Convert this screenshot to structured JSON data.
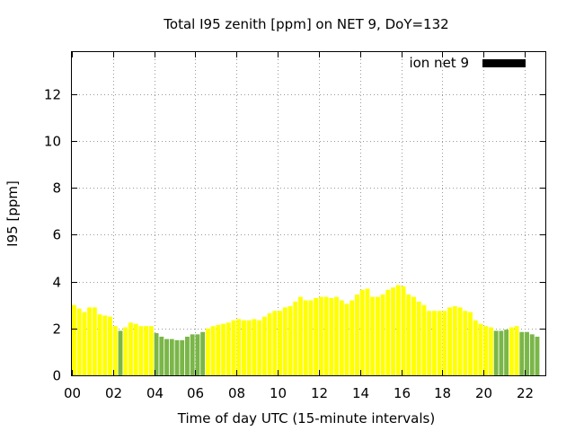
{
  "chart_data": {
    "type": "bar",
    "title": "Total I95 zenith [ppm] on NET 9, DoY=132",
    "xlabel": "Time of day UTC (15-minute intervals)",
    "ylabel": "I95 [ppm]",
    "xlim": [
      0,
      23
    ],
    "ylim": [
      0,
      13.8
    ],
    "grid": true,
    "legend": {
      "position": "top-right",
      "entries": [
        {
          "label": "ion net 9",
          "color": "#000000"
        }
      ]
    },
    "x_ticks": [
      {
        "value": 0,
        "label": "00"
      },
      {
        "value": 2,
        "label": "02"
      },
      {
        "value": 4,
        "label": "04"
      },
      {
        "value": 6,
        "label": "06"
      },
      {
        "value": 8,
        "label": "08"
      },
      {
        "value": 10,
        "label": "10"
      },
      {
        "value": 12,
        "label": "12"
      },
      {
        "value": 14,
        "label": "14"
      },
      {
        "value": 16,
        "label": "16"
      },
      {
        "value": 18,
        "label": "18"
      },
      {
        "value": 20,
        "label": "20"
      },
      {
        "value": 22,
        "label": "22"
      }
    ],
    "y_ticks": [
      {
        "value": 0,
        "label": "0"
      },
      {
        "value": 2,
        "label": "2"
      },
      {
        "value": 4,
        "label": "4"
      },
      {
        "value": 6,
        "label": "6"
      },
      {
        "value": 8,
        "label": "8"
      },
      {
        "value": 10,
        "label": "10"
      },
      {
        "value": 12,
        "label": "12"
      }
    ],
    "colors": {
      "yellow": "#ffff00",
      "green": "#7ab648"
    },
    "bar_interval_hours": 0.25,
    "bars": [
      {
        "x": 0.0,
        "y": 3.0,
        "c": "yellow"
      },
      {
        "x": 0.25,
        "y": 2.85,
        "c": "yellow"
      },
      {
        "x": 0.5,
        "y": 2.7,
        "c": "yellow"
      },
      {
        "x": 0.75,
        "y": 2.9,
        "c": "yellow"
      },
      {
        "x": 1.0,
        "y": 2.9,
        "c": "yellow"
      },
      {
        "x": 1.25,
        "y": 2.6,
        "c": "yellow"
      },
      {
        "x": 1.5,
        "y": 2.55,
        "c": "yellow"
      },
      {
        "x": 1.75,
        "y": 2.5,
        "c": "yellow"
      },
      {
        "x": 2.0,
        "y": 2.1,
        "c": "yellow"
      },
      {
        "x": 2.25,
        "y": 1.9,
        "c": "green"
      },
      {
        "x": 2.5,
        "y": 2.05,
        "c": "yellow"
      },
      {
        "x": 2.75,
        "y": 2.25,
        "c": "yellow"
      },
      {
        "x": 3.0,
        "y": 2.2,
        "c": "yellow"
      },
      {
        "x": 3.25,
        "y": 2.1,
        "c": "yellow"
      },
      {
        "x": 3.5,
        "y": 2.1,
        "c": "yellow"
      },
      {
        "x": 3.75,
        "y": 2.1,
        "c": "yellow"
      },
      {
        "x": 4.0,
        "y": 1.8,
        "c": "green"
      },
      {
        "x": 4.25,
        "y": 1.65,
        "c": "green"
      },
      {
        "x": 4.5,
        "y": 1.55,
        "c": "green"
      },
      {
        "x": 4.75,
        "y": 1.55,
        "c": "green"
      },
      {
        "x": 5.0,
        "y": 1.5,
        "c": "green"
      },
      {
        "x": 5.25,
        "y": 1.5,
        "c": "green"
      },
      {
        "x": 5.5,
        "y": 1.65,
        "c": "green"
      },
      {
        "x": 5.75,
        "y": 1.75,
        "c": "green"
      },
      {
        "x": 6.0,
        "y": 1.75,
        "c": "green"
      },
      {
        "x": 6.25,
        "y": 1.85,
        "c": "green"
      },
      {
        "x": 6.5,
        "y": 2.0,
        "c": "yellow"
      },
      {
        "x": 6.75,
        "y": 2.1,
        "c": "yellow"
      },
      {
        "x": 7.0,
        "y": 2.15,
        "c": "yellow"
      },
      {
        "x": 7.25,
        "y": 2.2,
        "c": "yellow"
      },
      {
        "x": 7.5,
        "y": 2.25,
        "c": "yellow"
      },
      {
        "x": 7.75,
        "y": 2.35,
        "c": "yellow"
      },
      {
        "x": 8.0,
        "y": 2.4,
        "c": "yellow"
      },
      {
        "x": 8.25,
        "y": 2.35,
        "c": "yellow"
      },
      {
        "x": 8.5,
        "y": 2.35,
        "c": "yellow"
      },
      {
        "x": 8.75,
        "y": 2.4,
        "c": "yellow"
      },
      {
        "x": 9.0,
        "y": 2.35,
        "c": "yellow"
      },
      {
        "x": 9.25,
        "y": 2.5,
        "c": "yellow"
      },
      {
        "x": 9.5,
        "y": 2.65,
        "c": "yellow"
      },
      {
        "x": 9.75,
        "y": 2.75,
        "c": "yellow"
      },
      {
        "x": 10.0,
        "y": 2.75,
        "c": "yellow"
      },
      {
        "x": 10.25,
        "y": 2.9,
        "c": "yellow"
      },
      {
        "x": 10.5,
        "y": 2.95,
        "c": "yellow"
      },
      {
        "x": 10.75,
        "y": 3.15,
        "c": "yellow"
      },
      {
        "x": 11.0,
        "y": 3.35,
        "c": "yellow"
      },
      {
        "x": 11.25,
        "y": 3.2,
        "c": "yellow"
      },
      {
        "x": 11.5,
        "y": 3.2,
        "c": "yellow"
      },
      {
        "x": 11.75,
        "y": 3.3,
        "c": "yellow"
      },
      {
        "x": 12.0,
        "y": 3.35,
        "c": "yellow"
      },
      {
        "x": 12.25,
        "y": 3.35,
        "c": "yellow"
      },
      {
        "x": 12.5,
        "y": 3.3,
        "c": "yellow"
      },
      {
        "x": 12.75,
        "y": 3.35,
        "c": "yellow"
      },
      {
        "x": 13.0,
        "y": 3.2,
        "c": "yellow"
      },
      {
        "x": 13.25,
        "y": 3.05,
        "c": "yellow"
      },
      {
        "x": 13.5,
        "y": 3.2,
        "c": "yellow"
      },
      {
        "x": 13.75,
        "y": 3.45,
        "c": "yellow"
      },
      {
        "x": 14.0,
        "y": 3.65,
        "c": "yellow"
      },
      {
        "x": 14.25,
        "y": 3.7,
        "c": "yellow"
      },
      {
        "x": 14.5,
        "y": 3.35,
        "c": "yellow"
      },
      {
        "x": 14.75,
        "y": 3.35,
        "c": "yellow"
      },
      {
        "x": 15.0,
        "y": 3.45,
        "c": "yellow"
      },
      {
        "x": 15.25,
        "y": 3.65,
        "c": "yellow"
      },
      {
        "x": 15.5,
        "y": 3.75,
        "c": "yellow"
      },
      {
        "x": 15.75,
        "y": 3.85,
        "c": "yellow"
      },
      {
        "x": 16.0,
        "y": 3.8,
        "c": "yellow"
      },
      {
        "x": 16.25,
        "y": 3.45,
        "c": "yellow"
      },
      {
        "x": 16.5,
        "y": 3.35,
        "c": "yellow"
      },
      {
        "x": 16.75,
        "y": 3.15,
        "c": "yellow"
      },
      {
        "x": 17.0,
        "y": 3.0,
        "c": "yellow"
      },
      {
        "x": 17.25,
        "y": 2.75,
        "c": "yellow"
      },
      {
        "x": 17.5,
        "y": 2.75,
        "c": "yellow"
      },
      {
        "x": 17.75,
        "y": 2.75,
        "c": "yellow"
      },
      {
        "x": 18.0,
        "y": 2.75,
        "c": "yellow"
      },
      {
        "x": 18.25,
        "y": 2.9,
        "c": "yellow"
      },
      {
        "x": 18.5,
        "y": 2.95,
        "c": "yellow"
      },
      {
        "x": 18.75,
        "y": 2.9,
        "c": "yellow"
      },
      {
        "x": 19.0,
        "y": 2.75,
        "c": "yellow"
      },
      {
        "x": 19.25,
        "y": 2.7,
        "c": "yellow"
      },
      {
        "x": 19.5,
        "y": 2.35,
        "c": "yellow"
      },
      {
        "x": 19.75,
        "y": 2.2,
        "c": "yellow"
      },
      {
        "x": 20.0,
        "y": 2.1,
        "c": "yellow"
      },
      {
        "x": 20.25,
        "y": 2.05,
        "c": "yellow"
      },
      {
        "x": 20.5,
        "y": 1.9,
        "c": "green"
      },
      {
        "x": 20.75,
        "y": 1.9,
        "c": "green"
      },
      {
        "x": 21.0,
        "y": 1.95,
        "c": "green"
      },
      {
        "x": 21.25,
        "y": 2.05,
        "c": "yellow"
      },
      {
        "x": 21.5,
        "y": 2.1,
        "c": "yellow"
      },
      {
        "x": 21.75,
        "y": 1.85,
        "c": "green"
      },
      {
        "x": 22.0,
        "y": 1.85,
        "c": "green"
      },
      {
        "x": 22.25,
        "y": 1.75,
        "c": "green"
      },
      {
        "x": 22.5,
        "y": 1.65,
        "c": "green"
      }
    ]
  }
}
